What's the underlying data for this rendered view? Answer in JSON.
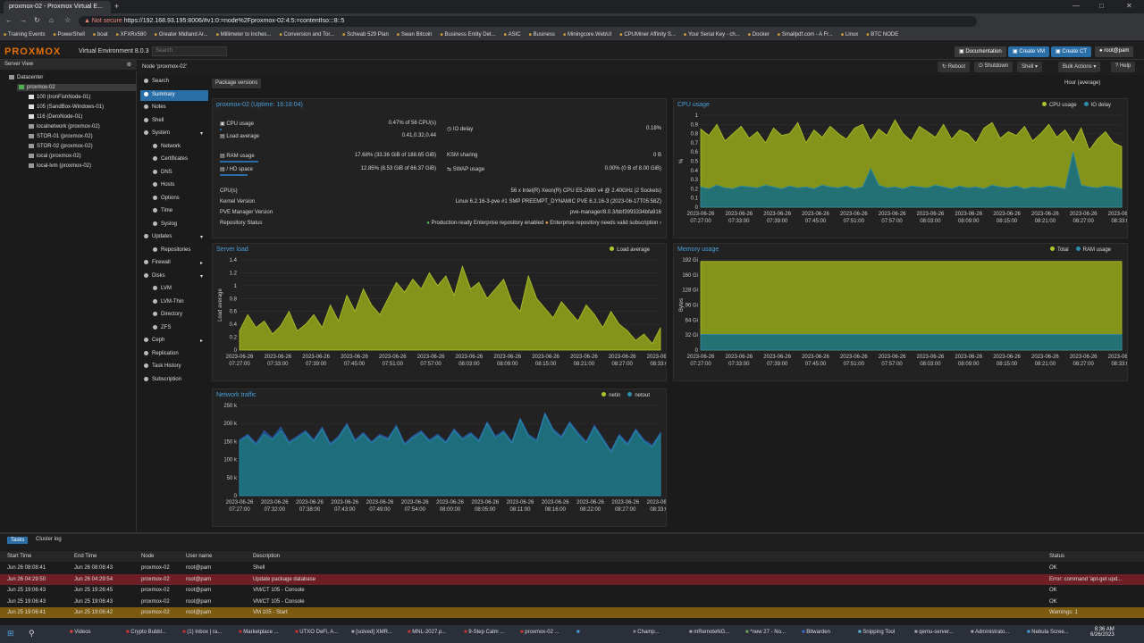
{
  "browser": {
    "tab_title": "proxmox-02 - Proxmox Virtual E...",
    "not_secure": "Not secure",
    "url": "https://192.168.93.195:8006/#v1:0:=node%2Fproxmox-02:4:5:=contentIso:::8::5",
    "bookmarks": [
      "Training Events",
      "PowerShell",
      "boat",
      "XFXRx580",
      "Greater Midland Ar...",
      "Millimeter to Inches...",
      "Conversion and Tor...",
      "Schwab 529 Plan",
      "Swan Bitcoin",
      "Business Entity Det...",
      "ASIC",
      "Business",
      "Miningcore.WebUI",
      "CPUMiner Affinity S...",
      "Your Serial Key - ch...",
      "Docker",
      "Smallpdf.com - A Fr...",
      "Linux",
      "BTC NODE"
    ]
  },
  "header": {
    "logo": "PROXMOX",
    "version": "Virtual Environment 8.0.3",
    "search": "Search",
    "documentation": "Documentation",
    "create_vm": "Create VM",
    "create_ct": "Create CT",
    "user": "root@pam"
  },
  "tree": {
    "view": "Server View",
    "items": [
      {
        "label": "Datacenter",
        "indent": 0
      },
      {
        "label": "proxmox-02",
        "indent": 1
      },
      {
        "label": "100 (IronFishNode-01)",
        "indent": 2
      },
      {
        "label": "105 (SandBox-Windows-01)",
        "indent": 2
      },
      {
        "label": "116 (DeroNode-01)",
        "indent": 2
      },
      {
        "label": "localnetwork (proxmox-02)",
        "indent": 2
      },
      {
        "label": "STOR-01 (proxmox-02)",
        "indent": 2
      },
      {
        "label": "STOR-02 (proxmox-02)",
        "indent": 2
      },
      {
        "label": "local (proxmox-02)",
        "indent": 2
      },
      {
        "label": "local-lvm (proxmox-02)",
        "indent": 2
      }
    ]
  },
  "node": {
    "title": "Node 'proxmox-02'",
    "reboot": "Reboot",
    "shutdown": "Shutdown",
    "shell": "Shell",
    "bulk": "Bulk Actions",
    "help": "Help"
  },
  "menu": [
    {
      "label": "Search",
      "sub": false
    },
    {
      "label": "Summary",
      "sub": false
    },
    {
      "label": "Notes",
      "sub": false
    },
    {
      "label": "Shell",
      "sub": false
    },
    {
      "label": "System",
      "sub": false,
      "arrow": "v"
    },
    {
      "label": "Network",
      "sub": true
    },
    {
      "label": "Certificates",
      "sub": true
    },
    {
      "label": "DNS",
      "sub": true
    },
    {
      "label": "Hosts",
      "sub": true
    },
    {
      "label": "Options",
      "sub": true
    },
    {
      "label": "Time",
      "sub": true
    },
    {
      "label": "Syslog",
      "sub": true
    },
    {
      "label": "Updates",
      "sub": false,
      "arrow": "v"
    },
    {
      "label": "Repositories",
      "sub": true
    },
    {
      "label": "Firewall",
      "sub": false,
      "arrow": ">"
    },
    {
      "label": "Disks",
      "sub": false,
      "arrow": "v"
    },
    {
      "label": "LVM",
      "sub": true
    },
    {
      "label": "LVM-Thin",
      "sub": true
    },
    {
      "label": "Directory",
      "sub": true
    },
    {
      "label": "ZFS",
      "sub": true
    },
    {
      "label": "Ceph",
      "sub": false,
      "arrow": ">"
    },
    {
      "label": "Replication",
      "sub": false
    },
    {
      "label": "Task History",
      "sub": false
    },
    {
      "label": "Subscription",
      "sub": false
    }
  ],
  "toolbar": {
    "package_versions": "Package versions",
    "timeframe": "Hour (average)"
  },
  "summary": {
    "title": "proxmox-02 (Uptime: 16:18:04)",
    "cpu_label": "CPU usage",
    "cpu_value": "0.47% of 56 CPU(s)",
    "cpu_pct": 0.47,
    "io_label": "IO delay",
    "io_value": "0.18%",
    "load_label": "Load average",
    "load_value": "0.41,0.32,0.44",
    "ram_label": "RAM usage",
    "ram_value": "17.68% (33.36 GiB of 188.65 GiB)",
    "ram_pct": 17.68,
    "ksm_label": "KSM sharing",
    "ksm_value": "0 B",
    "hd_label": "/ HD space",
    "hd_value": "12.85% (8.53 GiB of 66.37 GiB)",
    "hd_pct": 12.85,
    "swap_label": "SWAP usage",
    "swap_value": "0.00% (0 B of 8.00 GiB)",
    "cpus_label": "CPU(s)",
    "cpus_value": "56 x Intel(R) Xeon(R) CPU E5-2680 v4 @ 2.40GHz (2 Sockets)",
    "kernel_label": "Kernel Version",
    "kernel_value": "Linux 6.2.16-3-pve #1 SMP PREEMPT_DYNAMIC PVE 6.2.16-3 (2023-06-17T05:58Z)",
    "pve_label": "PVE Manager Version",
    "pve_value": "pve-manager/8.0.3/bbf3993334bfa916",
    "repo_label": "Repository Status",
    "repo_ok": "Production-ready Enterprise repository enabled",
    "repo_warn": "Enterprise repository needs valid subscription"
  },
  "colors": {
    "fill_primary": "#8a9a1a",
    "fill_secondary": "#1f6f7a",
    "line_primary": "#b2c52a",
    "line_secondary": "#2a8fa8",
    "accent": "#2a6ea8"
  },
  "chart_data": [
    {
      "name_id": "cpu",
      "type": "area",
      "title": "CPU usage",
      "ylabel": "%",
      "ylim": [
        0,
        1
      ],
      "yticks": [
        "0",
        "0.1",
        "0.2",
        "0.3",
        "0.4",
        "0.5",
        "0.6",
        "0.7",
        "0.8",
        "0.9",
        "1"
      ],
      "xticks": [
        "2023-06-26 07:27:00",
        "2023-06-26 07:33:00",
        "2023-06-26 07:39:00",
        "2023-06-26 07:45:00",
        "2023-06-26 07:51:00",
        "2023-06-26 07:57:00",
        "2023-06-26 08:03:00",
        "2023-06-26 08:09:00",
        "2023-06-26 08:15:00",
        "2023-06-26 08:21:00",
        "2023-06-26 08:27:00",
        "2023-06-26 08:33:00"
      ],
      "series": [
        {
          "name": "CPU usage",
          "values": [
            0.85,
            0.78,
            0.9,
            0.72,
            0.8,
            0.88,
            0.75,
            0.82,
            0.7,
            0.86,
            0.78,
            0.8,
            0.92,
            0.7,
            0.84,
            0.76,
            0.88,
            0.8,
            0.74,
            0.86,
            0.9,
            0.72,
            0.85,
            0.78,
            0.95,
            0.8,
            0.72,
            0.88,
            0.82,
            0.76,
            0.9,
            0.74,
            0.84,
            0.8,
            0.7,
            0.86,
            0.92,
            0.75,
            0.82,
            0.78,
            0.88,
            0.72,
            0.8,
            0.9,
            0.76,
            0.84,
            0.7,
            0.86,
            0.62,
            0.74,
            0.82,
            0.7,
            0.66
          ]
        },
        {
          "name": "IO delay",
          "values": [
            0.22,
            0.2,
            0.24,
            0.21,
            0.2,
            0.23,
            0.22,
            0.21,
            0.24,
            0.22,
            0.2,
            0.23,
            0.21,
            0.22,
            0.2,
            0.24,
            0.22,
            0.21,
            0.23,
            0.2,
            0.22,
            0.42,
            0.24,
            0.21,
            0.22,
            0.2,
            0.23,
            0.22,
            0.21,
            0.24,
            0.22,
            0.2,
            0.23,
            0.21,
            0.22,
            0.2,
            0.24,
            0.22,
            0.21,
            0.23,
            0.2,
            0.22,
            0.21,
            0.23,
            0.22,
            0.2,
            0.6,
            0.24,
            0.22,
            0.21,
            0.23,
            0.22,
            0.2
          ]
        }
      ]
    },
    {
      "name_id": "load",
      "type": "area",
      "title": "Server load",
      "ylabel": "Load average",
      "ylim": [
        0,
        1.4
      ],
      "yticks": [
        "0",
        "0.2",
        "0.4",
        "0.6",
        "0.8",
        "1",
        "1.2",
        "1.4"
      ],
      "xticks": [
        "2023-06-26 07:27:00",
        "2023-06-26 07:33:00",
        "2023-06-26 07:39:00",
        "2023-06-26 07:45:00",
        "2023-06-26 07:51:00",
        "2023-06-26 07:57:00",
        "2023-06-26 08:03:00",
        "2023-06-26 08:09:00",
        "2023-06-26 08:15:00",
        "2023-06-26 08:21:00",
        "2023-06-26 08:27:00",
        "2023-06-26 08:33:00"
      ],
      "series": [
        {
          "name": "Load average",
          "values": [
            0.3,
            0.55,
            0.35,
            0.45,
            0.25,
            0.38,
            0.6,
            0.3,
            0.4,
            0.55,
            0.35,
            0.7,
            0.45,
            0.85,
            0.6,
            0.95,
            0.7,
            0.55,
            0.8,
            1.05,
            0.9,
            1.1,
            0.95,
            1.2,
            1.0,
            1.15,
            0.85,
            1.3,
            0.95,
            1.05,
            0.8,
            0.95,
            1.1,
            0.75,
            0.6,
            1.15,
            0.8,
            0.65,
            0.5,
            0.75,
            0.6,
            0.45,
            0.7,
            0.55,
            0.35,
            0.6,
            0.4,
            0.3,
            0.15,
            0.25,
            0.1,
            0.35
          ]
        }
      ]
    },
    {
      "name_id": "mem",
      "type": "area",
      "title": "Memory usage",
      "ylabel": "Bytes",
      "ylim": [
        0,
        192
      ],
      "yticks": [
        "0",
        "32 Gi",
        "64 Gi",
        "96 Gi",
        "128 Gi",
        "160 Gi",
        "192 Gi"
      ],
      "xticks": [
        "2023-06-26 07:27:00",
        "2023-06-26 07:33:00",
        "2023-06-26 07:39:00",
        "2023-06-26 07:45:00",
        "2023-06-26 07:51:00",
        "2023-06-26 07:57:00",
        "2023-06-26 08:03:00",
        "2023-06-26 08:09:00",
        "2023-06-26 08:15:00",
        "2023-06-26 08:21:00",
        "2023-06-26 08:27:00",
        "2023-06-26 08:33:00"
      ],
      "series": [
        {
          "name": "Total",
          "values": [
            188.65,
            188.65
          ]
        },
        {
          "name": "RAM usage",
          "values": [
            33.36,
            33.36
          ]
        }
      ]
    },
    {
      "name_id": "net",
      "type": "area",
      "title": "Network traffic",
      "ylim": [
        0,
        250
      ],
      "yticks": [
        "0",
        "50 k",
        "100 k",
        "150 k",
        "200 k",
        "250 k"
      ],
      "xticks": [
        "2023-06-26 07:27:00",
        "2023-06-26 07:32:00",
        "2023-06-26 07:38:00",
        "2023-06-26 07:43:00",
        "2023-06-26 07:49:00",
        "2023-06-26 07:54:00",
        "2023-06-26 08:00:00",
        "2023-06-26 08:05:00",
        "2023-06-26 08:11:00",
        "2023-06-26 08:16:00",
        "2023-06-26 08:22:00",
        "2023-06-26 08:27:00",
        "2023-06-26 08:33:00"
      ],
      "series": [
        {
          "name": "netin",
          "values": [
            150,
            165,
            140,
            170,
            155,
            180,
            145,
            160,
            175,
            150,
            185,
            140,
            160,
            195,
            150,
            170,
            145,
            165,
            155,
            190,
            140,
            160,
            175,
            150,
            165,
            145,
            180,
            155,
            170,
            150,
            200,
            160,
            175,
            145,
            210,
            165,
            150,
            225,
            180,
            160,
            200,
            170,
            145,
            190,
            155,
            120,
            165,
            140,
            180,
            150,
            135,
            170
          ]
        },
        {
          "name": "netout",
          "values": [
            155,
            170,
            145,
            180,
            160,
            190,
            150,
            165,
            180,
            155,
            190,
            145,
            165,
            200,
            155,
            175,
            150,
            170,
            160,
            195,
            145,
            165,
            180,
            155,
            170,
            150,
            185,
            160,
            175,
            155,
            205,
            165,
            180,
            150,
            215,
            170,
            155,
            230,
            185,
            165,
            205,
            175,
            150,
            195,
            160,
            125,
            170,
            145,
            185,
            155,
            140,
            175
          ]
        }
      ]
    }
  ],
  "tasks": {
    "tab_tasks": "Tasks",
    "tab_cluster": "Cluster log",
    "headers": [
      "Start Time",
      "End Time",
      "Node",
      "User name",
      "Description",
      "Status"
    ],
    "rows": [
      {
        "start": "Jun 26 08:08:41",
        "end": "Jun 26 08:08:43",
        "node": "proxmox-02",
        "user": "root@pam",
        "desc": "Shell",
        "status": "OK",
        "kind": "normal"
      },
      {
        "start": "Jun 26 04:29:50",
        "end": "Jun 26 04:29:54",
        "node": "proxmox-02",
        "user": "root@pam",
        "desc": "Update package database",
        "status": "Error: command 'apt-get upd...",
        "kind": "err"
      },
      {
        "start": "Jun 25 19:06:43",
        "end": "Jun 25 19:26:45",
        "node": "proxmox-02",
        "user": "root@pam",
        "desc": "VM/CT 105 - Console",
        "status": "OK",
        "kind": "normal"
      },
      {
        "start": "Jun 25 19:06:43",
        "end": "Jun 25 19:06:43",
        "node": "proxmox-02",
        "user": "root@pam",
        "desc": "VM/CT 105 - Console",
        "status": "OK",
        "kind": "normal"
      },
      {
        "start": "Jun 25 19:06:41",
        "end": "Jun 25 19:06:42",
        "node": "proxmox-02",
        "user": "root@pam",
        "desc": "VM 105 - Start",
        "status": "Warnings: 1",
        "kind": "warn"
      }
    ]
  },
  "taskbar": {
    "items": [
      "Videos",
      "Crypto Bubbl...",
      "(1) Inbox | ra...",
      "Marketplace ...",
      "UTXO DeFi, A...",
      "[solved] XMR...",
      "MNL-2027.p...",
      "9-Step Calm ...",
      "proxmox-02 ...",
      "",
      "Champ...",
      "mRemoteNG...",
      "*new 27 - No...",
      "Bitwarden",
      "Snipping Tool",
      "qemu-server...",
      "Administrato...",
      "Nebula Scree..."
    ],
    "time": "8:36 AM",
    "date": "6/26/2023"
  }
}
